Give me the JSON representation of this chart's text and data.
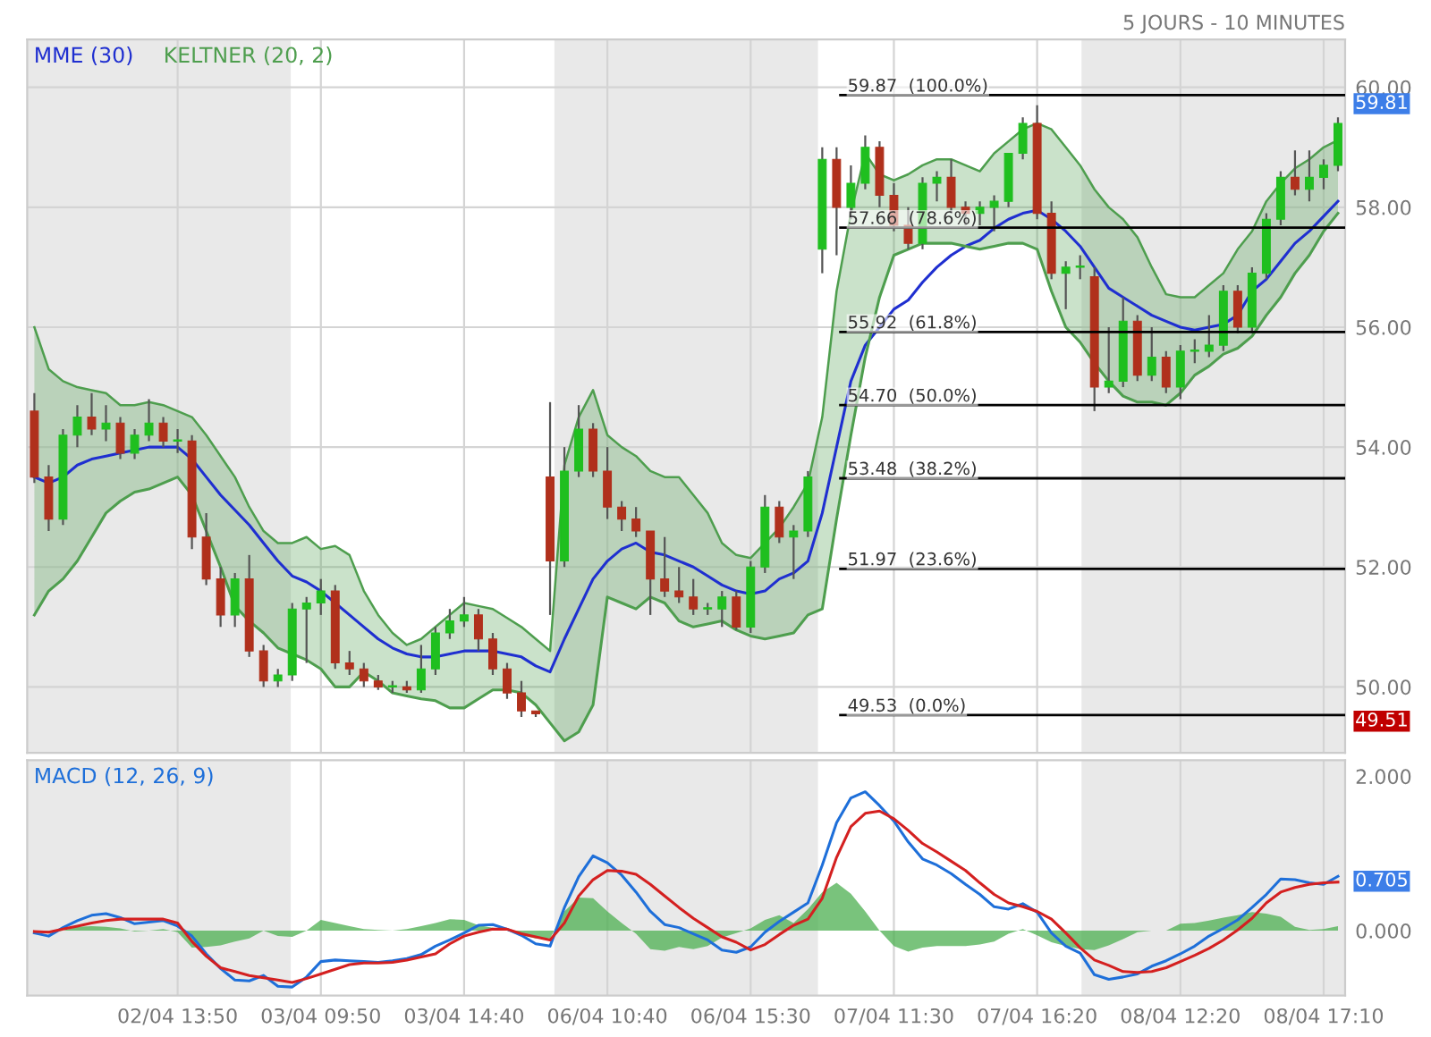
{
  "chart_data": [
    {
      "type": "candlestick",
      "subtitle": "5 JOURS - 10 MINUTES",
      "legend": "top left",
      "grid": true,
      "tick_labels": "y",
      "ylim": [
        48.9,
        60.8
      ],
      "yticks": [
        {
          "value": 50,
          "label": "50.00"
        },
        {
          "value": 52,
          "label": "52.00"
        },
        {
          "value": 54,
          "label": "54.00"
        },
        {
          "value": 56,
          "label": "56.00"
        },
        {
          "value": 58,
          "label": "58.00"
        },
        {
          "value": 60,
          "label": "60.00"
        }
      ],
      "categories": [
        null,
        null,
        null,
        null,
        null,
        null,
        null,
        null,
        null,
        null,
        null,
        null,
        null,
        null,
        null,
        null,
        null,
        null,
        null,
        null,
        null,
        null,
        null,
        null,
        null,
        null,
        null,
        null,
        null,
        null,
        null,
        null,
        null,
        null,
        null,
        null,
        null,
        null,
        null,
        null,
        null,
        null,
        null,
        null,
        null,
        null,
        null,
        null,
        null,
        null,
        null,
        null,
        null,
        null,
        null,
        null,
        null,
        null,
        null,
        null,
        null,
        null,
        null,
        null,
        null,
        null,
        null,
        null,
        null,
        null,
        null,
        null,
        null,
        null,
        null,
        null,
        null,
        null,
        null,
        null,
        null,
        null,
        null,
        null,
        null,
        null,
        null,
        null,
        null,
        null,
        null,
        null
      ],
      "ref_lines": [
        {
          "axis": "y",
          "value": 59.87,
          "label": "59.87  (100.0%)",
          "color": "#000000"
        },
        {
          "axis": "y",
          "value": 57.66,
          "label": "57.66  (78.6%)",
          "color": "#000000"
        },
        {
          "axis": "y",
          "value": 55.92,
          "label": "55.92  (61.8%)",
          "color": "#000000"
        },
        {
          "axis": "y",
          "value": 54.7,
          "label": "54.70  (50.0%)",
          "color": "#000000"
        },
        {
          "axis": "y",
          "value": 53.48,
          "label": "53.48  (38.2%)",
          "color": "#000000"
        },
        {
          "axis": "y",
          "value": 51.97,
          "label": "51.97  (23.6%)",
          "color": "#000000"
        },
        {
          "axis": "y",
          "value": 49.53,
          "label": "49.53  (0.0%)",
          "color": "#000000"
        }
      ],
      "annotations": [
        "59.81",
        "49.51"
      ],
      "ohlc": [
        [
          54.6,
          54.9,
          53.4,
          53.5
        ],
        [
          53.5,
          53.7,
          52.6,
          52.8
        ],
        [
          52.8,
          54.3,
          52.7,
          54.2
        ],
        [
          54.2,
          54.7,
          54.0,
          54.5
        ],
        [
          54.5,
          54.9,
          54.2,
          54.3
        ],
        [
          54.3,
          54.7,
          54.1,
          54.4
        ],
        [
          54.4,
          54.5,
          53.8,
          53.9
        ],
        [
          53.9,
          54.3,
          53.8,
          54.2
        ],
        [
          54.2,
          54.8,
          54.1,
          54.4
        ],
        [
          54.4,
          54.5,
          54.0,
          54.1
        ],
        [
          54.1,
          54.3,
          53.9,
          54.1
        ],
        [
          54.1,
          54.2,
          52.3,
          52.5
        ],
        [
          52.5,
          52.9,
          51.7,
          51.8
        ],
        [
          51.8,
          52.0,
          51.0,
          51.2
        ],
        [
          51.2,
          51.9,
          51.0,
          51.8
        ],
        [
          51.8,
          52.2,
          50.5,
          50.6
        ],
        [
          50.6,
          50.7,
          50.0,
          50.1
        ],
        [
          50.1,
          50.3,
          50.0,
          50.2
        ],
        [
          50.2,
          51.4,
          50.1,
          51.3
        ],
        [
          51.3,
          51.5,
          50.4,
          51.4
        ],
        [
          51.4,
          51.8,
          51.2,
          51.6
        ],
        [
          51.6,
          51.7,
          50.3,
          50.4
        ],
        [
          50.4,
          50.6,
          50.2,
          50.3
        ],
        [
          50.3,
          50.4,
          50.0,
          50.1
        ],
        [
          50.1,
          50.2,
          49.95,
          50.0
        ],
        [
          50.0,
          50.1,
          49.9,
          50.0
        ],
        [
          50.0,
          50.1,
          49.9,
          49.95
        ],
        [
          49.95,
          50.7,
          49.9,
          50.3
        ],
        [
          50.3,
          51.0,
          50.2,
          50.9
        ],
        [
          50.9,
          51.3,
          50.8,
          51.1
        ],
        [
          51.1,
          51.5,
          51.0,
          51.2
        ],
        [
          51.2,
          51.3,
          50.6,
          50.8
        ],
        [
          50.8,
          50.9,
          50.2,
          50.3
        ],
        [
          50.3,
          50.4,
          49.8,
          49.9
        ],
        [
          49.9,
          50.1,
          49.5,
          49.6
        ],
        [
          49.6,
          49.6,
          49.5,
          49.55
        ],
        [
          53.5,
          54.75,
          51.2,
          52.1
        ],
        [
          52.1,
          54.0,
          52.0,
          53.6
        ],
        [
          53.6,
          54.7,
          53.5,
          54.3
        ],
        [
          54.3,
          54.4,
          53.5,
          53.6
        ],
        [
          53.6,
          54.0,
          52.8,
          53.0
        ],
        [
          53.0,
          53.1,
          52.6,
          52.8
        ],
        [
          52.8,
          53.0,
          52.5,
          52.6
        ],
        [
          52.6,
          52.6,
          51.2,
          51.8
        ],
        [
          51.8,
          52.5,
          51.5,
          51.6
        ],
        [
          51.6,
          52.0,
          51.4,
          51.5
        ],
        [
          51.5,
          51.8,
          51.2,
          51.3
        ],
        [
          51.3,
          51.4,
          51.2,
          51.3
        ],
        [
          51.3,
          51.6,
          51.0,
          51.5
        ],
        [
          51.5,
          51.6,
          50.95,
          51.0
        ],
        [
          51.0,
          52.1,
          50.9,
          52.0
        ],
        [
          52.0,
          53.2,
          51.9,
          53.0
        ],
        [
          53.0,
          53.1,
          52.4,
          52.5
        ],
        [
          52.5,
          52.7,
          51.8,
          52.6
        ],
        [
          52.6,
          53.6,
          52.5,
          53.5
        ],
        [
          57.3,
          59.0,
          56.9,
          58.8
        ],
        [
          58.8,
          59.0,
          57.2,
          58.0
        ],
        [
          58.0,
          58.7,
          57.8,
          58.4
        ],
        [
          58.4,
          59.2,
          58.3,
          59.0
        ],
        [
          59.0,
          59.1,
          58.0,
          58.2
        ],
        [
          58.2,
          58.4,
          57.6,
          57.7
        ],
        [
          57.7,
          58.0,
          57.3,
          57.4
        ],
        [
          57.4,
          58.5,
          57.3,
          58.4
        ],
        [
          58.4,
          58.6,
          58.1,
          58.5
        ],
        [
          58.5,
          58.8,
          57.9,
          58.0
        ],
        [
          58.0,
          58.1,
          57.7,
          57.9
        ],
        [
          57.9,
          58.1,
          57.7,
          58.0
        ],
        [
          58.0,
          58.2,
          57.6,
          58.1
        ],
        [
          58.1,
          58.9,
          58.0,
          58.9
        ],
        [
          58.9,
          59.5,
          58.8,
          59.4
        ],
        [
          59.4,
          59.7,
          57.8,
          57.9
        ],
        [
          57.9,
          58.1,
          56.8,
          56.9
        ],
        [
          56.9,
          57.1,
          56.3,
          57.0
        ],
        [
          57.0,
          57.2,
          56.8,
          57.0
        ],
        [
          56.84,
          57.0,
          54.6,
          55.0
        ],
        [
          55.0,
          56.0,
          54.9,
          55.1
        ],
        [
          55.1,
          56.5,
          55.0,
          56.1
        ],
        [
          56.1,
          56.2,
          55.1,
          55.2
        ],
        [
          55.2,
          56.0,
          55.1,
          55.5
        ],
        [
          55.5,
          55.6,
          54.9,
          55.0
        ],
        [
          55.0,
          55.7,
          54.8,
          55.6
        ],
        [
          55.6,
          55.8,
          55.4,
          55.6
        ],
        [
          55.6,
          56.2,
          55.5,
          55.7
        ],
        [
          55.7,
          56.7,
          55.6,
          56.6
        ],
        [
          56.6,
          56.7,
          55.9,
          56.0
        ],
        [
          56.0,
          57.0,
          55.9,
          56.9
        ],
        [
          56.9,
          57.9,
          56.8,
          57.8
        ],
        [
          57.8,
          58.6,
          57.7,
          58.5
        ],
        [
          58.5,
          58.95,
          58.2,
          58.3
        ],
        [
          58.3,
          58.95,
          58.1,
          58.5
        ],
        [
          58.5,
          58.8,
          58.3,
          58.7
        ],
        [
          58.7,
          59.5,
          58.6,
          59.4
        ]
      ],
      "series": [
        {
          "name": "MME (30)",
          "type": "line",
          "color": "#1f2fd0",
          "values": [
            53.5,
            53.4,
            53.5,
            53.7,
            53.8,
            53.85,
            53.9,
            53.95,
            54.0,
            54.0,
            54.0,
            53.8,
            53.5,
            53.2,
            52.95,
            52.7,
            52.4,
            52.1,
            51.85,
            51.75,
            51.6,
            51.4,
            51.2,
            51.0,
            50.8,
            50.65,
            50.55,
            50.5,
            50.5,
            50.55,
            50.6,
            50.6,
            50.6,
            50.55,
            50.5,
            50.35,
            50.25,
            50.8,
            51.3,
            51.8,
            52.1,
            52.3,
            52.4,
            52.25,
            52.2,
            52.1,
            52.0,
            51.85,
            51.7,
            51.6,
            51.55,
            51.6,
            51.8,
            51.9,
            52.1,
            52.9,
            54.0,
            55.1,
            55.7,
            56.0,
            56.3,
            56.45,
            56.75,
            57.0,
            57.2,
            57.35,
            57.45,
            57.65,
            57.8,
            57.9,
            57.95,
            57.8,
            57.6,
            57.35,
            57.0,
            56.65,
            56.5,
            56.35,
            56.2,
            56.1,
            56.0,
            55.95,
            56.0,
            56.05,
            56.2,
            56.6,
            56.8,
            57.1,
            57.4,
            57.6,
            57.85,
            58.1
          ]
        },
        {
          "name": "KELTNER (20, 2)",
          "type": "line",
          "color": "#4e9e4e",
          "values": [
            56.0,
            55.3,
            55.1,
            55.0,
            54.95,
            54.9,
            54.7,
            54.7,
            54.75,
            54.7,
            54.6,
            54.5,
            54.2,
            53.85,
            53.5,
            53.0,
            52.6,
            52.4,
            52.4,
            52.5,
            52.3,
            52.35,
            52.2,
            51.6,
            51.2,
            50.9,
            50.7,
            50.8,
            51.0,
            51.2,
            51.4,
            51.35,
            51.3,
            51.15,
            51.0,
            50.8,
            50.6,
            53.7,
            54.5,
            54.95,
            54.2,
            54.0,
            53.85,
            53.6,
            53.5,
            53.5,
            53.2,
            52.9,
            52.4,
            52.2,
            52.15,
            52.4,
            52.65,
            53.0,
            53.4,
            54.5,
            56.6,
            57.9,
            58.9,
            58.55,
            58.45,
            58.55,
            58.7,
            58.8,
            58.8,
            58.7,
            58.6,
            58.9,
            59.1,
            59.3,
            59.4,
            59.3,
            59.0,
            58.7,
            58.3,
            58.0,
            57.8,
            57.5,
            57.0,
            56.55,
            56.5,
            56.5,
            56.7,
            56.9,
            57.3,
            57.6,
            58.1,
            58.4,
            58.65,
            58.8,
            59.0,
            59.12
          ],
          "upper": [
            56.0,
            55.3,
            55.1,
            55.0,
            54.95,
            54.9,
            54.7,
            54.7,
            54.75,
            54.7,
            54.6,
            54.5,
            54.2,
            53.85,
            53.5,
            53.0,
            52.6,
            52.4,
            52.4,
            52.5,
            52.3,
            52.35,
            52.2,
            51.6,
            51.2,
            50.9,
            50.7,
            50.8,
            51.0,
            51.2,
            51.4,
            51.35,
            51.3,
            51.15,
            51.0,
            50.8,
            50.6,
            53.7,
            54.5,
            54.95,
            54.2,
            54.0,
            53.85,
            53.6,
            53.5,
            53.5,
            53.2,
            52.9,
            52.4,
            52.2,
            52.15,
            52.4,
            52.65,
            53.0,
            53.4,
            54.5,
            56.6,
            57.9,
            58.9,
            58.55,
            58.45,
            58.55,
            58.7,
            58.8,
            58.8,
            58.7,
            58.6,
            58.9,
            59.1,
            59.3,
            59.4,
            59.3,
            59.0,
            58.7,
            58.3,
            58.0,
            57.8,
            57.5,
            57.0,
            56.55,
            56.5,
            56.5,
            56.7,
            56.9,
            57.3,
            57.6,
            58.1,
            58.4,
            58.65,
            58.8,
            59.0,
            59.12
          ],
          "lower": [
            51.2,
            51.6,
            51.8,
            52.1,
            52.5,
            52.9,
            53.1,
            53.25,
            53.3,
            53.4,
            53.5,
            53.2,
            52.6,
            52.0,
            51.35,
            51.1,
            50.9,
            50.65,
            50.55,
            50.45,
            50.3,
            50.0,
            50.0,
            50.25,
            50.1,
            49.9,
            49.85,
            49.8,
            49.77,
            49.65,
            49.65,
            49.8,
            49.95,
            49.95,
            49.9,
            49.7,
            49.4,
            49.1,
            49.25,
            49.7,
            51.5,
            51.4,
            51.3,
            51.5,
            51.4,
            51.1,
            51.0,
            51.05,
            51.1,
            50.95,
            50.85,
            50.8,
            50.85,
            50.9,
            51.2,
            51.3,
            52.8,
            54.2,
            55.5,
            56.5,
            57.2,
            57.3,
            57.4,
            57.4,
            57.4,
            57.35,
            57.3,
            57.35,
            57.4,
            57.4,
            57.3,
            56.6,
            56.0,
            55.75,
            55.4,
            55.1,
            54.85,
            54.75,
            54.75,
            54.7,
            54.9,
            55.2,
            55.35,
            55.55,
            55.65,
            55.85,
            56.2,
            56.5,
            56.9,
            57.2,
            57.6,
            57.9
          ]
        },
        {
          "type": "line",
          "color": "#4e9e4e",
          "values": [
            51.2,
            51.6,
            51.8,
            52.1,
            52.5,
            52.9,
            53.1,
            53.25,
            53.3,
            53.4,
            53.5,
            53.2,
            52.6,
            52.0,
            51.35,
            51.1,
            50.9,
            50.65,
            50.55,
            50.45,
            50.3,
            50.0,
            50.0,
            50.25,
            50.1,
            49.9,
            49.85,
            49.8,
            49.77,
            49.65,
            49.65,
            49.8,
            49.95,
            49.95,
            49.9,
            49.7,
            49.4,
            49.1,
            49.25,
            49.7,
            51.5,
            51.4,
            51.3,
            51.5,
            51.4,
            51.1,
            51.0,
            51.05,
            51.1,
            50.95,
            50.85,
            50.8,
            50.85,
            50.9,
            51.2,
            51.3,
            52.8,
            54.2,
            55.5,
            56.5,
            57.2,
            57.3,
            57.4,
            57.4,
            57.4,
            57.35,
            57.3,
            57.35,
            57.4,
            57.4,
            57.3,
            56.6,
            56.0,
            55.75,
            55.4,
            55.1,
            54.85,
            54.75,
            54.75,
            54.7,
            54.9,
            55.2,
            55.35,
            55.55,
            55.65,
            55.85,
            56.2,
            56.5,
            56.9,
            57.2,
            57.6,
            57.9
          ]
        }
      ]
    },
    {
      "type": "line",
      "title": "MACD (12, 26, 9)",
      "grid": "x",
      "ylim": [
        -0.84,
        2.21
      ],
      "yticks": [
        {
          "value": 0,
          "label": "0.000"
        },
        {
          "value": 2,
          "label": "2.000"
        }
      ],
      "categories": [
        null,
        null,
        null,
        null,
        null,
        null,
        null,
        null,
        null,
        null,
        "02/04 13:50",
        null,
        null,
        null,
        null,
        null,
        null,
        null,
        null,
        null,
        "03/04 09:50",
        null,
        null,
        null,
        null,
        null,
        null,
        null,
        null,
        null,
        "03/04 14:40",
        null,
        null,
        null,
        null,
        null,
        null,
        null,
        null,
        null,
        "06/04 10:40",
        null,
        null,
        null,
        null,
        null,
        null,
        null,
        null,
        null,
        "06/04 15:30",
        null,
        null,
        null,
        null,
        null,
        null,
        null,
        null,
        null,
        "07/04 11:30",
        null,
        null,
        null,
        null,
        null,
        null,
        null,
        null,
        null,
        "07/04 16:20",
        null,
        null,
        null,
        null,
        null,
        null,
        null,
        null,
        null,
        "08/04 12:20",
        null,
        null,
        null,
        null,
        null,
        null,
        null,
        null,
        null,
        "08/04 17:10",
        null
      ],
      "annotations": [
        "0.705"
      ],
      "series": [
        {
          "type": "area",
          "color": "#4caf50",
          "values": [
            -0.01,
            -0.02,
            0.0,
            0.05,
            0.06,
            0.05,
            0.03,
            -0.01,
            0.0,
            0.02,
            -0.02,
            -0.22,
            -0.21,
            -0.19,
            -0.14,
            -0.1,
            0.0,
            -0.07,
            -0.08,
            0.0,
            0.14,
            0.1,
            0.06,
            0.02,
            0.01,
            0.0,
            0.02,
            0.06,
            0.1,
            0.15,
            0.14,
            0.07,
            0.04,
            0.0,
            -0.06,
            -0.1,
            -0.1,
            0.25,
            0.43,
            0.42,
            0.25,
            0.1,
            -0.04,
            -0.24,
            -0.26,
            -0.21,
            -0.24,
            -0.2,
            -0.09,
            -0.03,
            0.03,
            0.14,
            0.2,
            0.1,
            0.28,
            0.5,
            0.62,
            0.48,
            0.25,
            0.0,
            -0.2,
            -0.27,
            -0.22,
            -0.2,
            -0.2,
            -0.2,
            -0.18,
            -0.14,
            -0.04,
            0.02,
            -0.06,
            -0.15,
            -0.2,
            -0.24,
            -0.25,
            -0.19,
            -0.11,
            -0.02,
            0.0,
            0.0,
            0.09,
            0.1,
            0.13,
            0.17,
            0.2,
            0.24,
            0.22,
            0.18,
            0.05,
            0.01,
            0.02,
            0.06
          ]
        },
        {
          "type": "line",
          "color": "#1e6fd9",
          "values": [
            -0.03,
            -0.07,
            0.04,
            0.13,
            0.2,
            0.22,
            0.17,
            0.09,
            0.11,
            0.13,
            0.06,
            -0.07,
            -0.3,
            -0.49,
            -0.64,
            -0.65,
            -0.58,
            -0.72,
            -0.73,
            -0.6,
            -0.4,
            -0.38,
            -0.39,
            -0.4,
            -0.41,
            -0.39,
            -0.36,
            -0.31,
            -0.2,
            -0.12,
            -0.03,
            0.07,
            0.08,
            0.02,
            -0.06,
            -0.17,
            -0.2,
            0.3,
            0.7,
            0.97,
            0.88,
            0.72,
            0.5,
            0.25,
            0.08,
            0.04,
            -0.04,
            -0.12,
            -0.25,
            -0.28,
            -0.21,
            -0.02,
            0.12,
            0.24,
            0.36,
            0.85,
            1.4,
            1.72,
            1.8,
            1.62,
            1.42,
            1.15,
            0.93,
            0.85,
            0.74,
            0.6,
            0.47,
            0.31,
            0.28,
            0.35,
            0.24,
            -0.03,
            -0.2,
            -0.29,
            -0.57,
            -0.63,
            -0.6,
            -0.56,
            -0.46,
            -0.39,
            -0.3,
            -0.2,
            -0.07,
            0.03,
            0.14,
            0.3,
            0.47,
            0.67,
            0.66,
            0.62,
            0.6,
            0.705
          ]
        },
        {
          "type": "line",
          "color": "#d42020",
          "values": [
            -0.01,
            -0.02,
            0.02,
            0.06,
            0.1,
            0.13,
            0.15,
            0.15,
            0.15,
            0.15,
            0.1,
            -0.14,
            -0.33,
            -0.48,
            -0.53,
            -0.58,
            -0.61,
            -0.64,
            -0.67,
            -0.62,
            -0.56,
            -0.5,
            -0.44,
            -0.42,
            -0.42,
            -0.41,
            -0.38,
            -0.34,
            -0.3,
            -0.17,
            -0.07,
            -0.02,
            0.02,
            0.02,
            -0.04,
            -0.08,
            -0.12,
            0.1,
            0.45,
            0.66,
            0.78,
            0.77,
            0.73,
            0.6,
            0.45,
            0.3,
            0.16,
            0.04,
            -0.08,
            -0.15,
            -0.25,
            -0.18,
            -0.05,
            0.07,
            0.15,
            0.42,
            0.95,
            1.35,
            1.52,
            1.55,
            1.45,
            1.3,
            1.13,
            1.02,
            0.9,
            0.78,
            0.62,
            0.47,
            0.36,
            0.31,
            0.25,
            0.15,
            -0.03,
            -0.22,
            -0.38,
            -0.45,
            -0.53,
            -0.54,
            -0.53,
            -0.48,
            -0.4,
            -0.32,
            -0.23,
            -0.12,
            0.01,
            0.16,
            0.36,
            0.5,
            0.56,
            0.6,
            0.62,
            0.63
          ]
        }
      ]
    }
  ]
}
